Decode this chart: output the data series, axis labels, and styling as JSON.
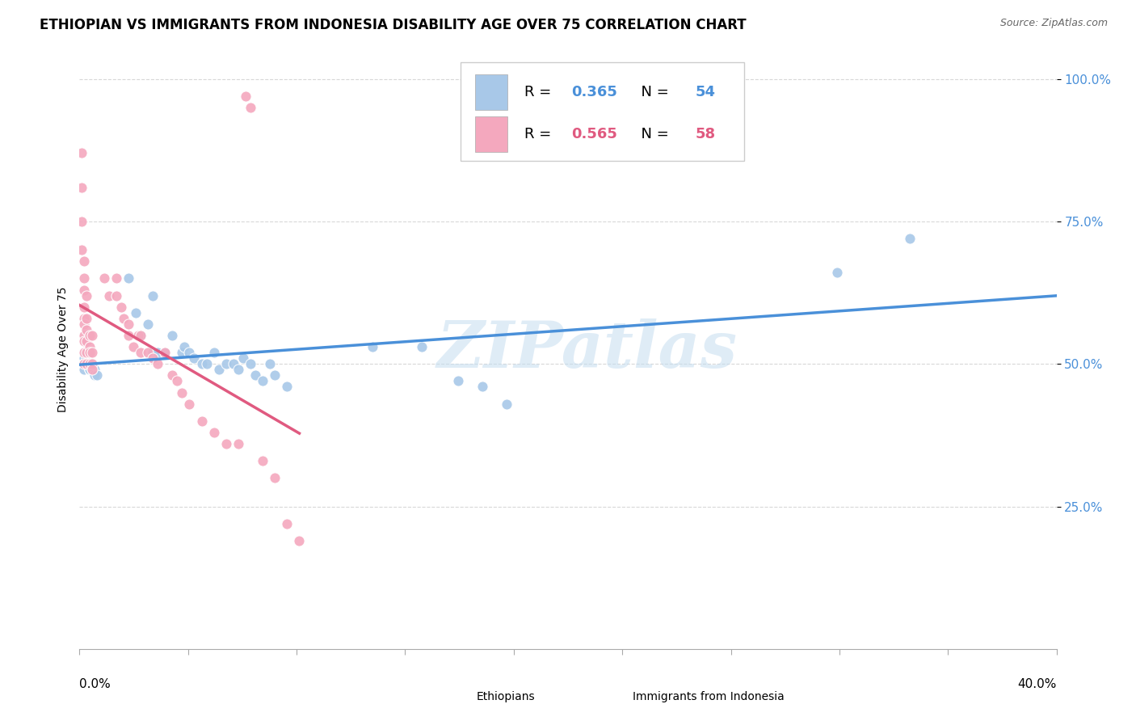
{
  "title": "ETHIOPIAN VS IMMIGRANTS FROM INDONESIA DISABILITY AGE OVER 75 CORRELATION CHART",
  "source": "Source: ZipAtlas.com",
  "ylabel": "Disability Age Over 75",
  "ytick_labels": [
    "25.0%",
    "50.0%",
    "75.0%",
    "100.0%"
  ],
  "legend_blue_R": "0.365",
  "legend_blue_N": "54",
  "legend_pink_R": "0.565",
  "legend_pink_N": "58",
  "watermark": "ZIPatlas",
  "blue_color": "#a8c8e8",
  "pink_color": "#f4a8be",
  "blue_line_color": "#4a90d9",
  "pink_line_color": "#e05a80",
  "tick_color": "#4a90d9",
  "background_color": "#ffffff",
  "grid_color": "#d8d8d8",
  "xlim": [
    0.0,
    0.4
  ],
  "ylim": [
    0.0,
    1.05
  ],
  "blue_scatter_x": [
    0.002,
    0.002,
    0.002,
    0.002,
    0.002,
    0.003,
    0.003,
    0.003,
    0.003,
    0.003,
    0.004,
    0.004,
    0.004,
    0.004,
    0.005,
    0.005,
    0.005,
    0.006,
    0.006,
    0.007,
    0.02,
    0.023,
    0.025,
    0.028,
    0.03,
    0.03,
    0.032,
    0.035,
    0.038,
    0.042,
    0.043,
    0.045,
    0.047,
    0.05,
    0.052,
    0.055,
    0.057,
    0.06,
    0.063,
    0.065,
    0.067,
    0.07,
    0.072,
    0.075,
    0.078,
    0.08,
    0.085,
    0.12,
    0.14,
    0.155,
    0.165,
    0.175,
    0.31,
    0.34
  ],
  "blue_scatter_y": [
    0.51,
    0.5,
    0.5,
    0.5,
    0.49,
    0.51,
    0.5,
    0.5,
    0.5,
    0.5,
    0.5,
    0.49,
    0.49,
    0.49,
    0.5,
    0.5,
    0.49,
    0.49,
    0.48,
    0.48,
    0.65,
    0.59,
    0.55,
    0.57,
    0.62,
    0.52,
    0.52,
    0.52,
    0.55,
    0.52,
    0.53,
    0.52,
    0.51,
    0.5,
    0.5,
    0.52,
    0.49,
    0.5,
    0.5,
    0.49,
    0.51,
    0.5,
    0.48,
    0.47,
    0.5,
    0.48,
    0.46,
    0.53,
    0.53,
    0.47,
    0.46,
    0.43,
    0.66,
    0.72
  ],
  "pink_scatter_x": [
    0.001,
    0.001,
    0.001,
    0.001,
    0.002,
    0.002,
    0.002,
    0.002,
    0.002,
    0.002,
    0.002,
    0.002,
    0.002,
    0.002,
    0.003,
    0.003,
    0.003,
    0.003,
    0.003,
    0.003,
    0.004,
    0.004,
    0.004,
    0.004,
    0.005,
    0.005,
    0.005,
    0.005,
    0.01,
    0.012,
    0.015,
    0.015,
    0.017,
    0.018,
    0.02,
    0.02,
    0.022,
    0.024,
    0.025,
    0.025,
    0.028,
    0.03,
    0.032,
    0.035,
    0.038,
    0.04,
    0.042,
    0.045,
    0.05,
    0.055,
    0.06,
    0.065,
    0.068,
    0.07,
    0.075,
    0.08,
    0.085,
    0.09
  ],
  "pink_scatter_y": [
    0.87,
    0.81,
    0.75,
    0.7,
    0.68,
    0.65,
    0.63,
    0.6,
    0.58,
    0.57,
    0.55,
    0.54,
    0.52,
    0.5,
    0.62,
    0.58,
    0.56,
    0.54,
    0.52,
    0.5,
    0.55,
    0.53,
    0.52,
    0.5,
    0.55,
    0.52,
    0.5,
    0.49,
    0.65,
    0.62,
    0.65,
    0.62,
    0.6,
    0.58,
    0.57,
    0.55,
    0.53,
    0.55,
    0.55,
    0.52,
    0.52,
    0.51,
    0.5,
    0.52,
    0.48,
    0.47,
    0.45,
    0.43,
    0.4,
    0.38,
    0.36,
    0.36,
    0.97,
    0.95,
    0.33,
    0.3,
    0.22,
    0.19
  ],
  "title_fontsize": 12,
  "source_fontsize": 9,
  "axis_label_fontsize": 10,
  "tick_fontsize": 11,
  "legend_fontsize": 13
}
